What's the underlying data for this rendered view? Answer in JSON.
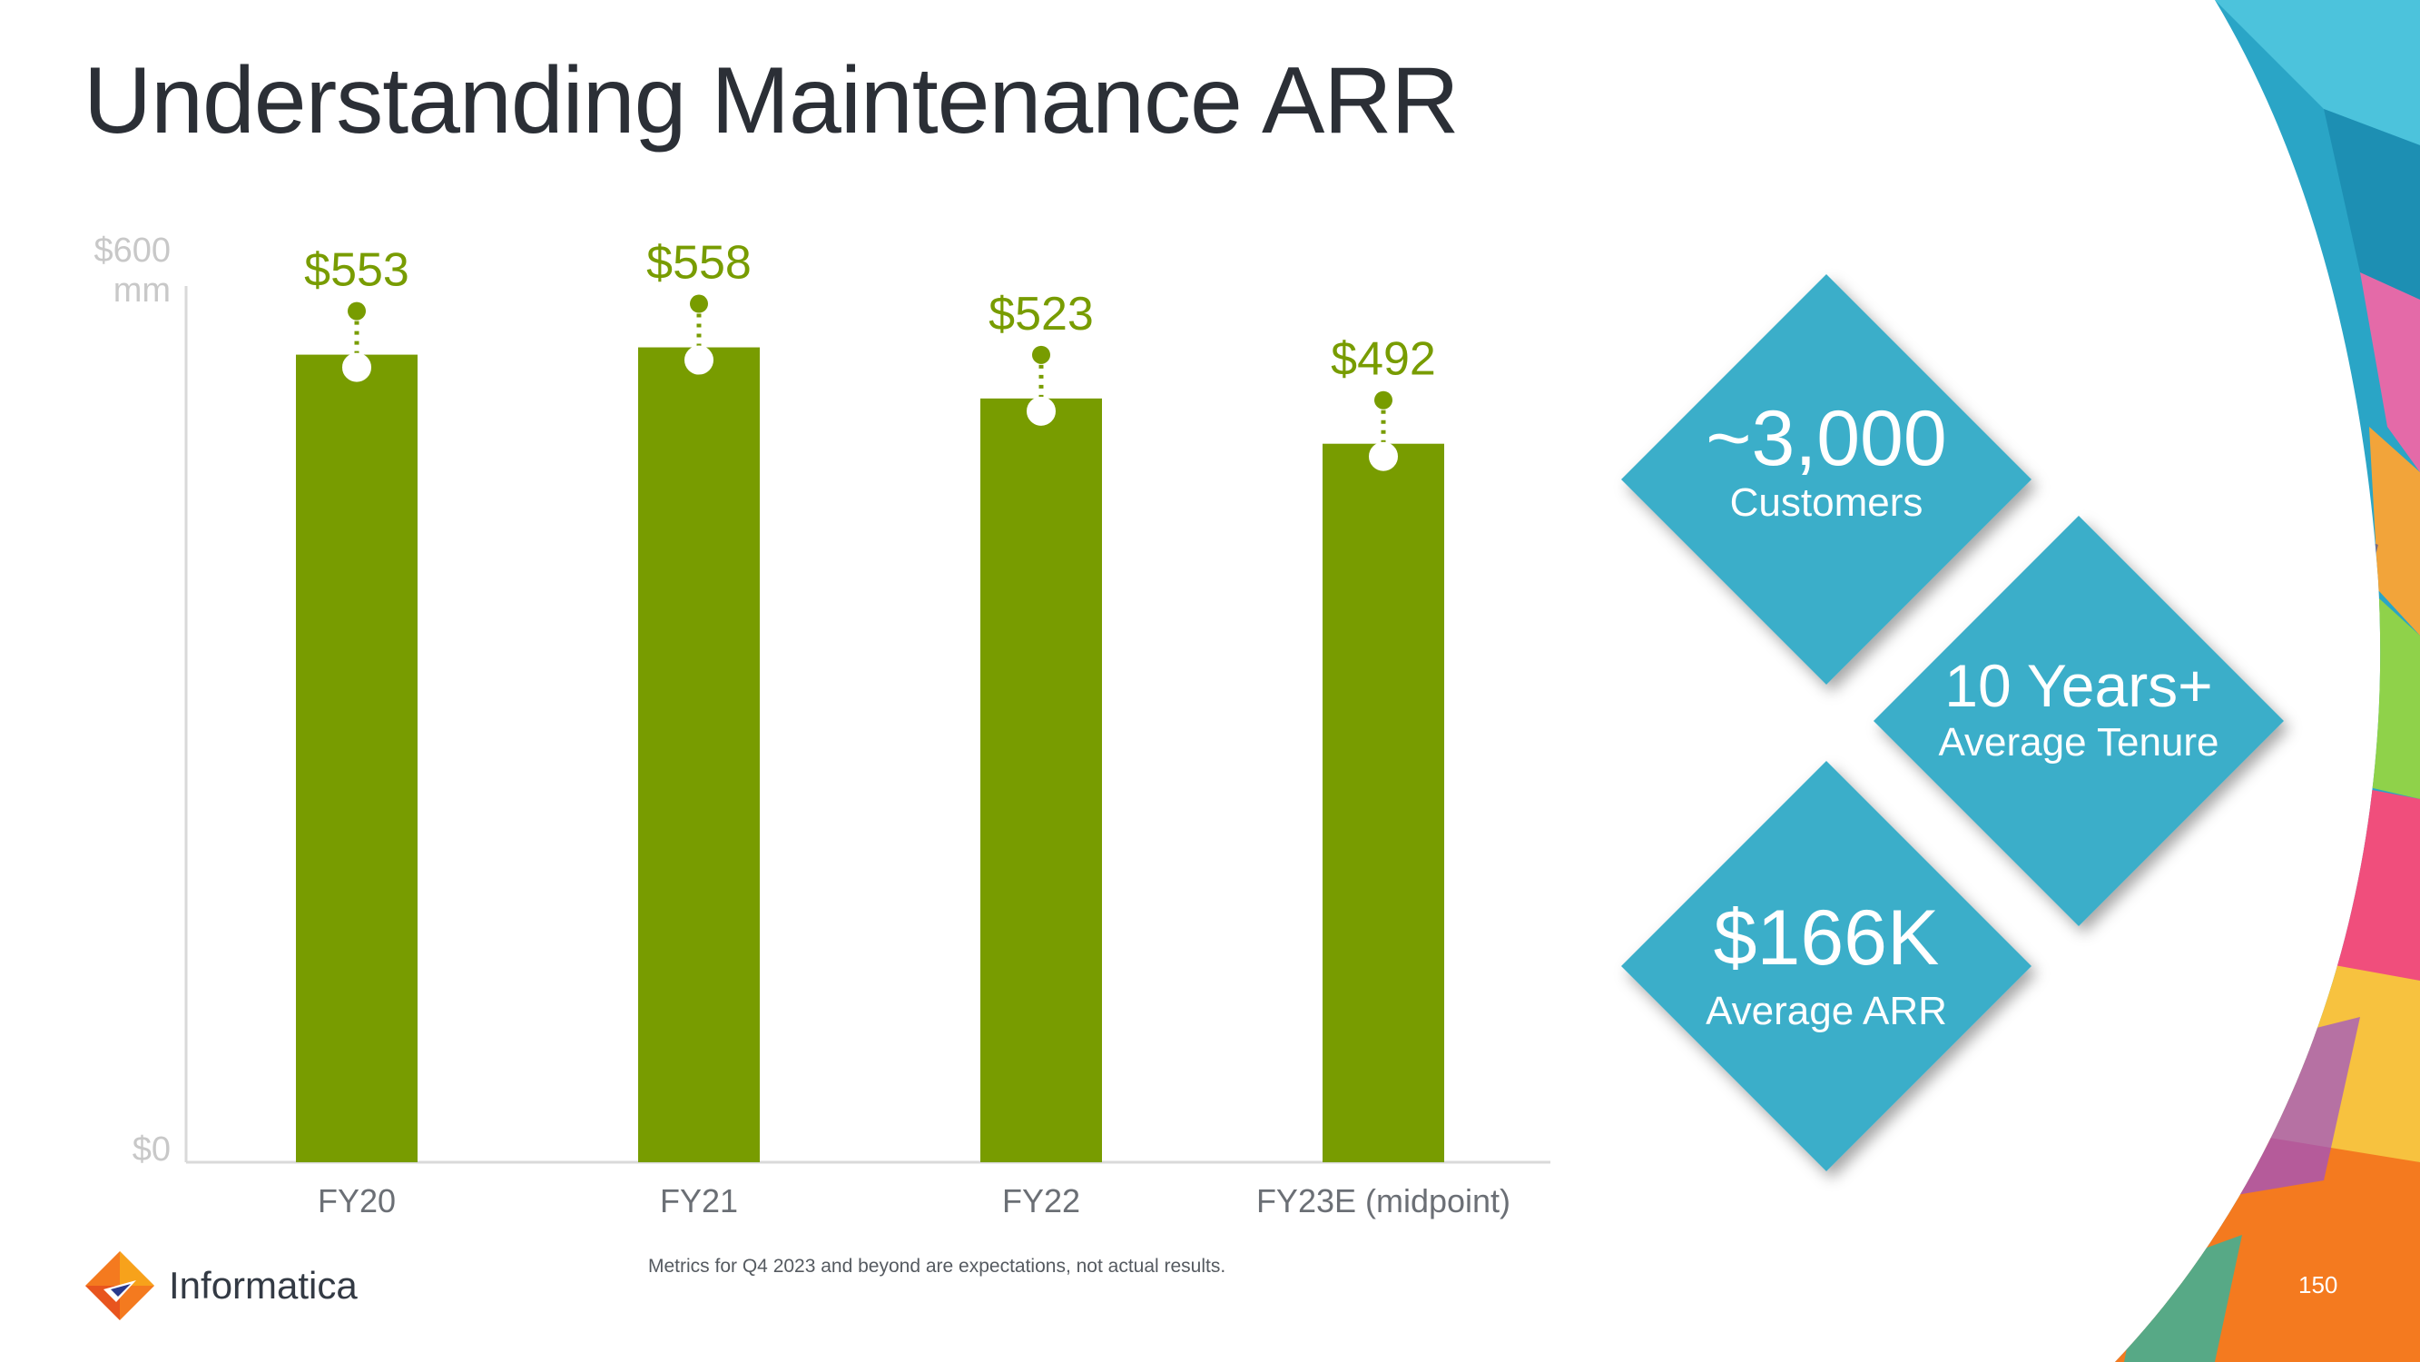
{
  "title": "Understanding Maintenance ARR",
  "chart_data": {
    "type": "bar",
    "categories": [
      "FY20",
      "FY21",
      "FY22",
      "FY23E (midpoint)"
    ],
    "values": [
      553,
      558,
      523,
      492
    ],
    "data_labels": [
      "$553",
      "$558",
      "$523",
      "$492"
    ],
    "y_tick_labels": [
      "$600 mm",
      "$0"
    ],
    "ylim": [
      0,
      600
    ],
    "bar_color": "#789c00",
    "label_color": "#789c00"
  },
  "metrics": [
    {
      "value": "~3,000",
      "label": "Customers"
    },
    {
      "value": "10 Years+",
      "label": "Average Tenure"
    },
    {
      "value": "$166K",
      "label": "Average ARR"
    }
  ],
  "diamond_color": "#3aaec9",
  "footnote": "Metrics for Q4 2023 and beyond are expectations, not actual results.",
  "brand": {
    "name": "Informatica"
  },
  "page_number": "150"
}
